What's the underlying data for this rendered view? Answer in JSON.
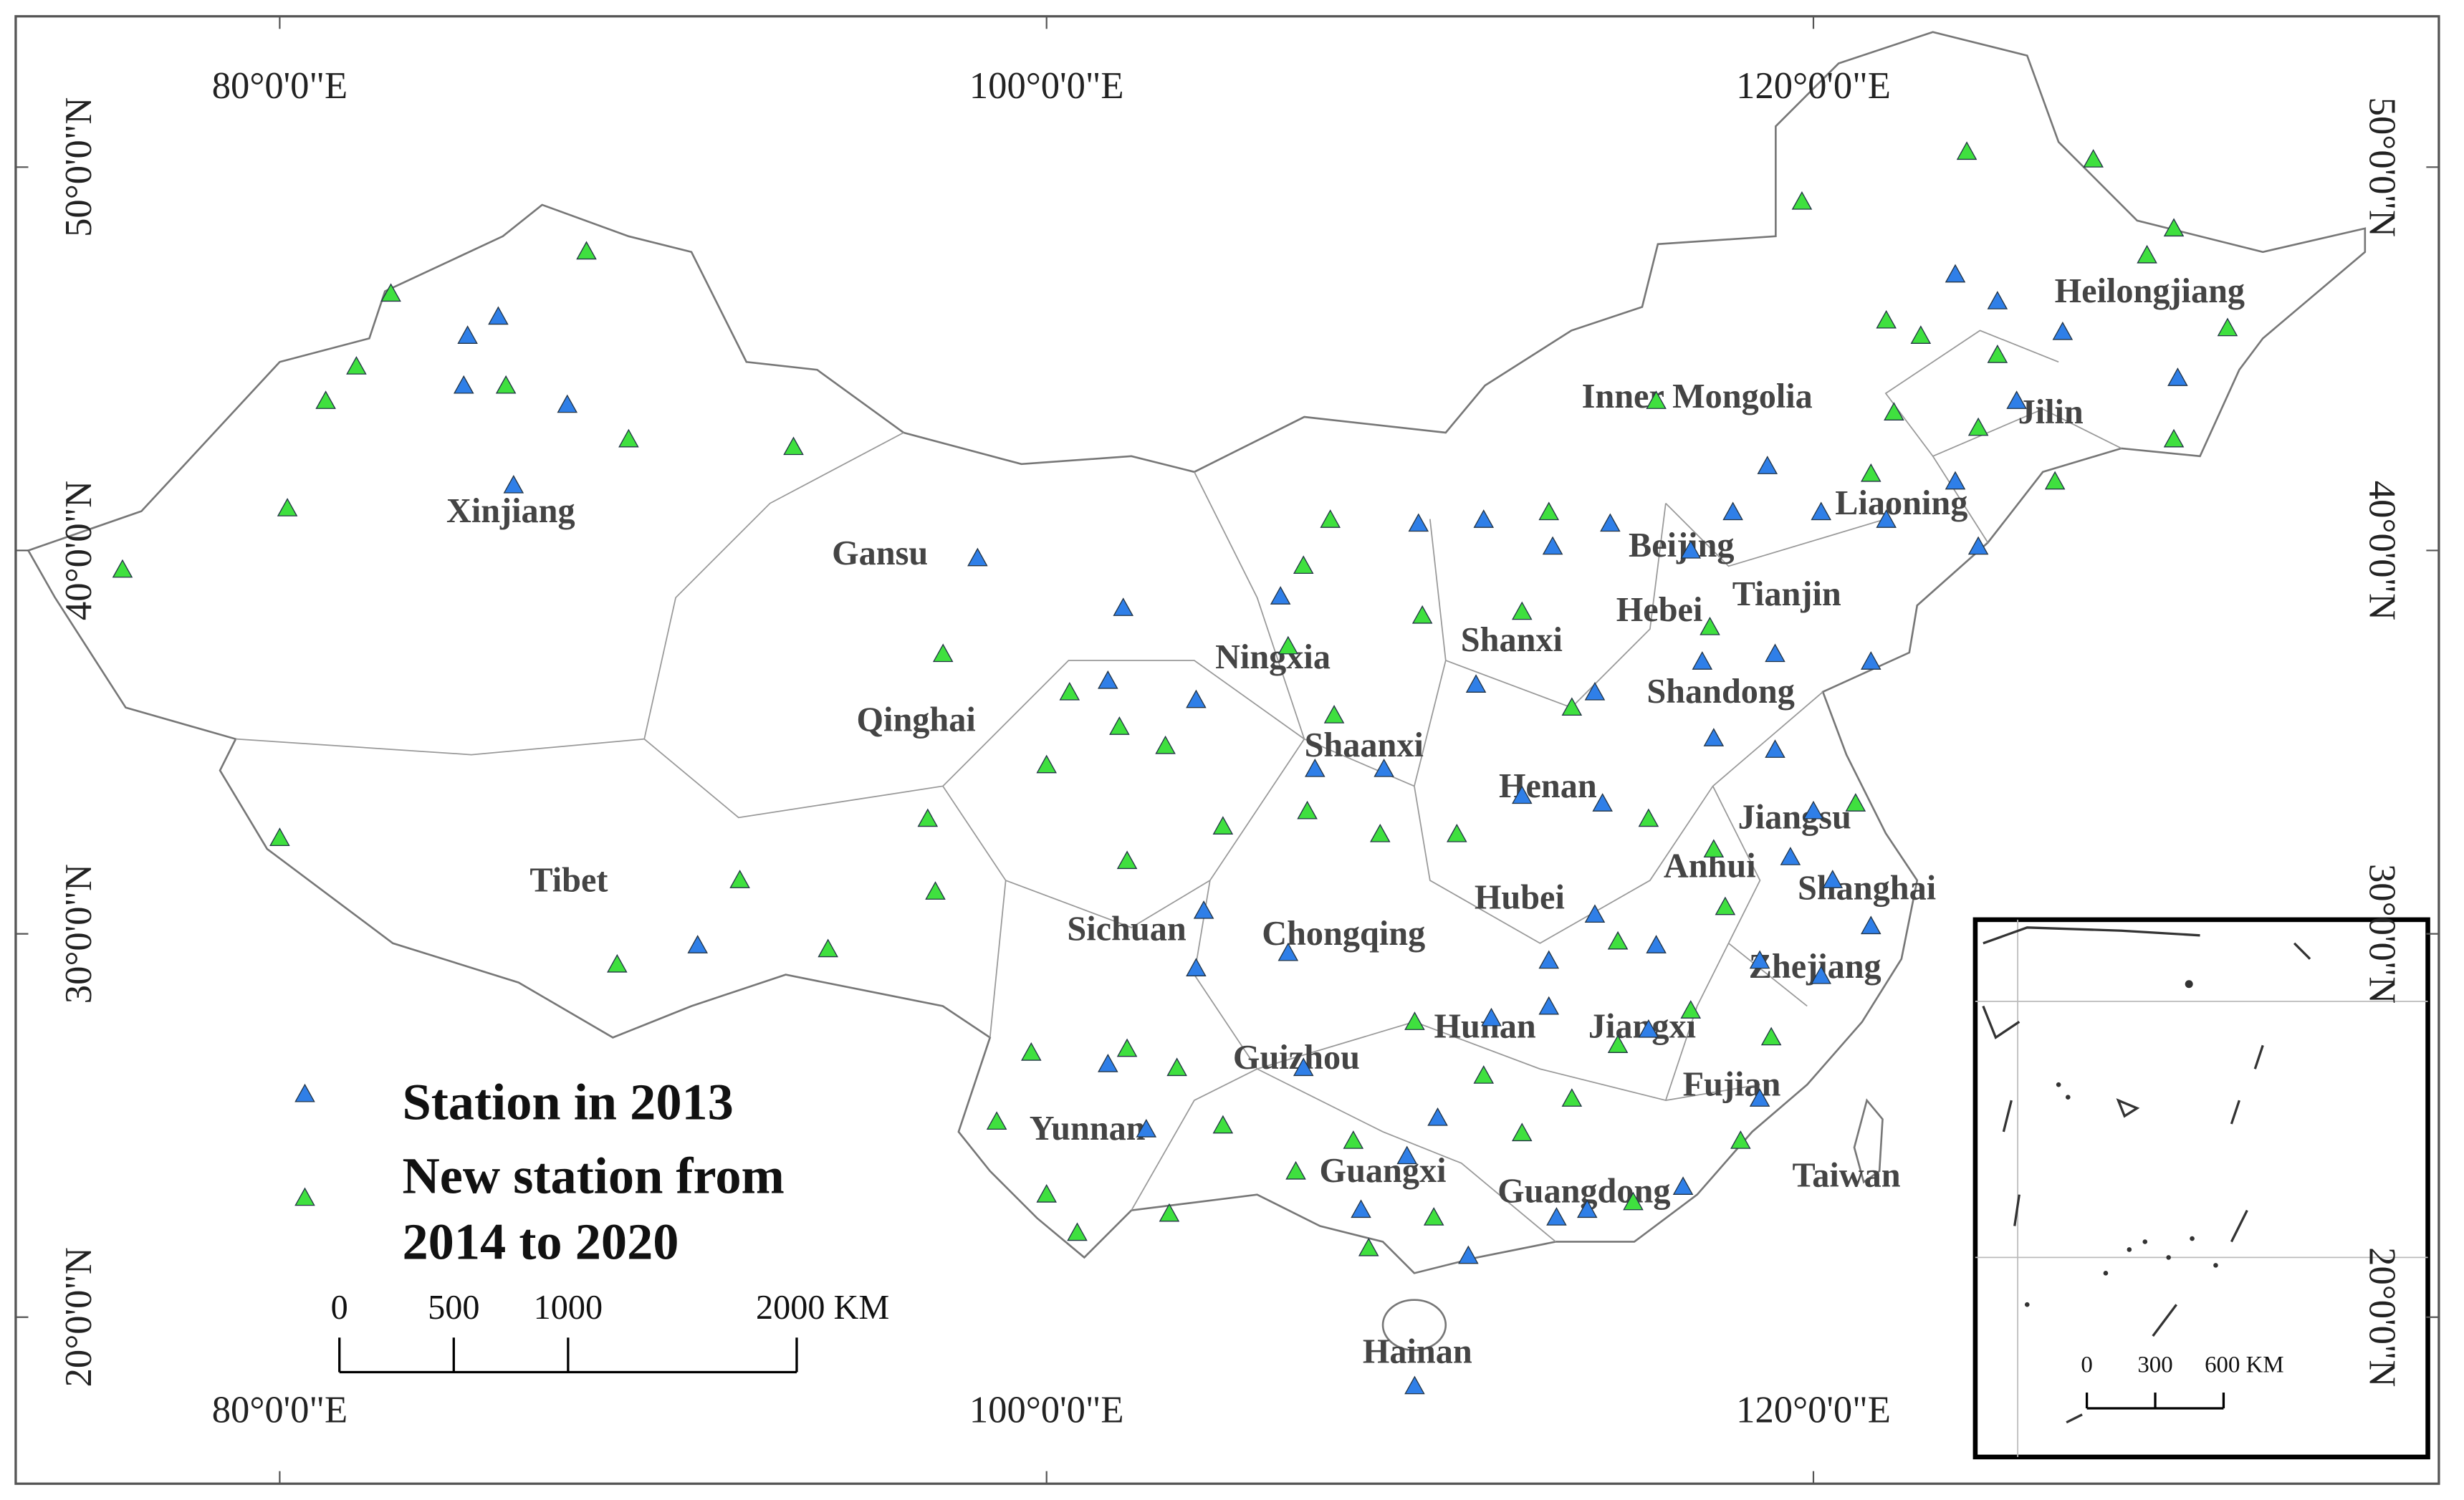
{
  "map": {
    "lon_ticks": [
      {
        "value": 80,
        "label": "80°0'0\"E"
      },
      {
        "value": 100,
        "label": "100°0'0\"E"
      },
      {
        "value": 120,
        "label": "120°0'0\"E"
      }
    ],
    "lat_ticks": [
      {
        "value": 50,
        "label": "50°0'0\"N"
      },
      {
        "value": 40,
        "label": "40°0'0\"N"
      },
      {
        "value": 30,
        "label": "30°0'0\"N"
      },
      {
        "value": 20,
        "label": "20°0'0\"N"
      }
    ],
    "regions": [
      "Xinjiang",
      "Gansu",
      "Qinghai",
      "Tibet",
      "Ningxia",
      "Shaanxi",
      "Shanxi",
      "Inner Mongolia",
      "Heilongjiang",
      "Jilin",
      "Liaoning",
      "Beijing",
      "Tianjin",
      "Hebei",
      "Shandong",
      "Henan",
      "Jiangsu",
      "Anhui",
      "Shanghai",
      "Hubei",
      "Chongqing",
      "Sichuan",
      "Zhejiang",
      "Hunan",
      "Jiangxi",
      "Guizhou",
      "Fujian",
      "Yunnan",
      "Taiwan",
      "Guangxi",
      "Guangdong",
      "Hainan"
    ],
    "scale_bar": [
      0,
      500,
      1000,
      {
        "value": 2000,
        "label": "2000 KM"
      }
    ],
    "inset_scale_bar": [
      0,
      300,
      {
        "value": 600,
        "label": "600 KM"
      }
    ],
    "series": [
      {
        "name": "Station in 2013",
        "color": "#2f7fe8",
        "lon": [
          84.9,
          85.7,
          84.8,
          87.5,
          86.1,
          90.9,
          98.2,
          102.0,
          101.6,
          103.9,
          106.1,
          107.0,
          108.8,
          109.7,
          111.4,
          113.2,
          114.7,
          116.8,
          117.9,
          118.8,
          120.2,
          121.9,
          123.7,
          124.3,
          123.7,
          124.8,
          126.5,
          125.3,
          129.5,
          117.1,
          119.0,
          121.5,
          117.4,
          119.0,
          120.0,
          119.4,
          120.5,
          121.5,
          120.2,
          118.6,
          115.9,
          114.3,
          113.1,
          113.1,
          111.6,
          115.7,
          110.2,
          109.4,
          108.2,
          113.3,
          114.1,
          116.6,
          118.6,
          103.9,
          106.3,
          106.7,
          101.6,
          102.6,
          109.6,
          111.0,
          112.4,
          114.5,
          114.3,
          111.2,
          104.1
        ],
        "lat": [
          45.6,
          46.1,
          44.3,
          43.8,
          41.7,
          29.7,
          39.8,
          38.5,
          36.6,
          36.1,
          38.8,
          34.3,
          34.3,
          40.7,
          40.8,
          40.1,
          40.7,
          40.0,
          41.0,
          42.2,
          41.0,
          40.8,
          41.8,
          40.1,
          47.2,
          46.5,
          45.7,
          43.9,
          44.5,
          37.1,
          37.3,
          37.1,
          35.1,
          34.8,
          33.2,
          32.0,
          31.4,
          30.2,
          28.9,
          29.3,
          29.7,
          30.5,
          29.3,
          28.1,
          27.8,
          27.5,
          25.2,
          24.2,
          22.8,
          22.6,
          22.8,
          23.4,
          25.7,
          29.1,
          29.5,
          26.5,
          26.6,
          24.9,
          18.2,
          21.6,
          33.6,
          33.4,
          36.3,
          36.5,
          30.6
        ]
      },
      {
        "name": "New station from 2014 to 2020",
        "color": "#3fe03f",
        "lon": [
          75.9,
          80.2,
          81.2,
          82.0,
          82.9,
          85.9,
          88.0,
          89.1,
          93.4,
          80.0,
          88.8,
          92.0,
          94.3,
          97.3,
          96.9,
          97.1,
          100.0,
          100.6,
          101.9,
          103.1,
          106.7,
          107.4,
          106.3,
          107.5,
          109.8,
          112.4,
          113.1,
          115.9,
          119.7,
          124.0,
          127.3,
          129.4,
          128.7,
          130.8,
          121.9,
          122.8,
          124.8,
          122.1,
          124.3,
          129.4,
          126.3,
          121.5,
          117.3,
          113.7,
          115.7,
          117.4,
          117.7,
          114.9,
          114.9,
          113.7,
          112.4,
          111.4,
          109.6,
          108.0,
          110.1,
          108.4,
          106.5,
          104.6,
          103.4,
          102.1,
          99.6,
          98.7,
          100.0,
          100.8,
          103.2,
          102.1,
          104.6,
          106.8,
          108.7,
          110.7,
          116.8,
          118.9,
          118.1,
          115.3,
          121.1
        ],
        "lat": [
          39.5,
          41.1,
          43.9,
          44.8,
          46.7,
          44.3,
          47.8,
          42.9,
          42.7,
          32.5,
          29.2,
          31.4,
          29.6,
          37.3,
          33.0,
          31.1,
          34.4,
          36.3,
          35.4,
          34.9,
          39.6,
          40.8,
          37.5,
          35.7,
          38.3,
          38.4,
          41.0,
          43.9,
          49.1,
          50.4,
          50.2,
          48.4,
          47.7,
          45.8,
          46.0,
          45.6,
          45.1,
          43.6,
          43.2,
          42.9,
          41.8,
          42.0,
          38.0,
          35.9,
          33.0,
          32.2,
          30.7,
          29.8,
          27.1,
          25.7,
          24.8,
          26.3,
          27.7,
          24.6,
          22.6,
          21.8,
          23.8,
          25.0,
          26.5,
          27.0,
          26.9,
          25.1,
          23.2,
          22.2,
          22.7,
          31.9,
          32.8,
          33.2,
          32.6,
          32.6,
          28.0,
          27.3,
          24.6,
          23.0,
          33.4
        ]
      }
    ]
  }
}
